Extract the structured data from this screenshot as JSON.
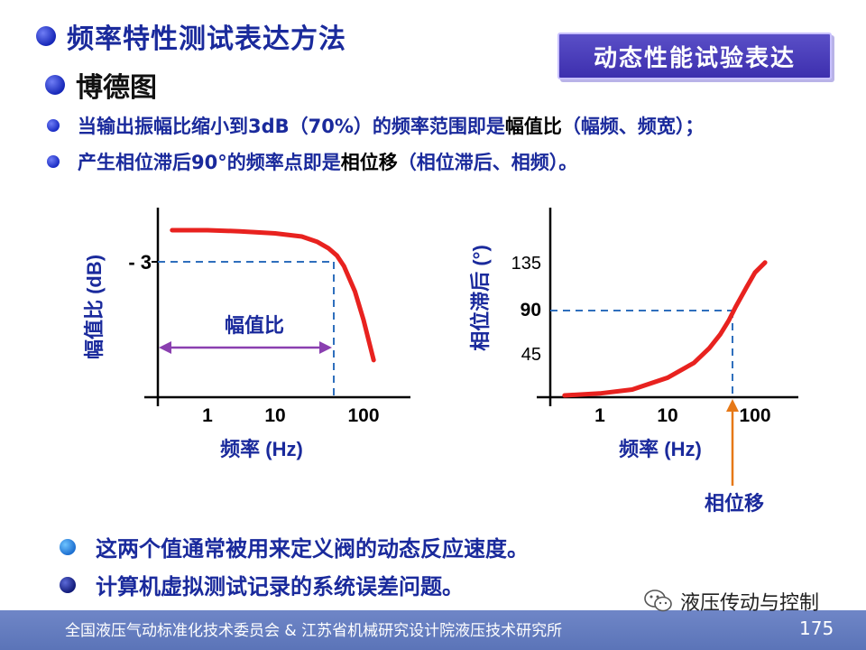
{
  "header": {
    "title": "频率特性测试表达方法",
    "subtitle": "博德图",
    "badge": "动态性能试验表达"
  },
  "lines": [
    {
      "pre": "当输出振幅比缩小到3dB（70%）的频率范围即是",
      "strong": "幅值比",
      "post": "（幅频、频宽）；"
    },
    {
      "pre": "产生相位滞后90°的频率点即是",
      "strong": "相位移",
      "post": "（相位滞后、相频）。"
    }
  ],
  "bottom": [
    "这两个值通常被用来定义阀的动态反应速度。",
    "计算机虚拟测试记录的系统误差问题。"
  ],
  "footer": {
    "text": "全国液压气动标准化技术委员会  &  江苏省机械研究设计院液压技术研究所",
    "wechat": "液压传动与控制",
    "page": "175"
  },
  "colors": {
    "title_blue": "#1a2a9c",
    "curve_red": "#e8221f",
    "dash_blue": "#2f6fbd",
    "range_purple": "#8a3fb0",
    "arrow_orange": "#e67817",
    "footer_bar": "#6a81c3"
  },
  "chart_data": [
    {
      "type": "line",
      "scale": "log-x",
      "xlabel": "频率 (Hz)",
      "ylabel": "幅值比 (dB)",
      "x_ticks": [
        "1",
        "10",
        "100"
      ],
      "y_ticks": [
        "- 3"
      ],
      "annotation": "幅值比",
      "marker_y": -3,
      "series": [
        {
          "x": [
            0.3,
            1,
            3,
            10,
            20,
            30,
            40,
            50,
            60,
            80,
            100,
            130
          ],
          "y": [
            0,
            0,
            -0.1,
            -0.3,
            -0.6,
            -1.1,
            -1.7,
            -2.4,
            -3.4,
            -5.8,
            -8.5,
            -12.3
          ]
        }
      ]
    },
    {
      "type": "line",
      "scale": "log-x",
      "xlabel": "频率 (Hz)",
      "ylabel": "相位滞后 (°)",
      "x_ticks": [
        "1",
        "10",
        "100"
      ],
      "y_ticks": [
        "135",
        "90",
        "45"
      ],
      "annotation": "相位移",
      "marker_y": 90,
      "ylim": [
        0,
        180
      ],
      "series": [
        {
          "x": [
            0.3,
            1,
            3,
            10,
            20,
            30,
            40,
            50,
            60,
            80,
            100,
            130
          ],
          "y": [
            0,
            2,
            6,
            18,
            33,
            48,
            62,
            76,
            90,
            110,
            125,
            135
          ]
        }
      ]
    }
  ]
}
